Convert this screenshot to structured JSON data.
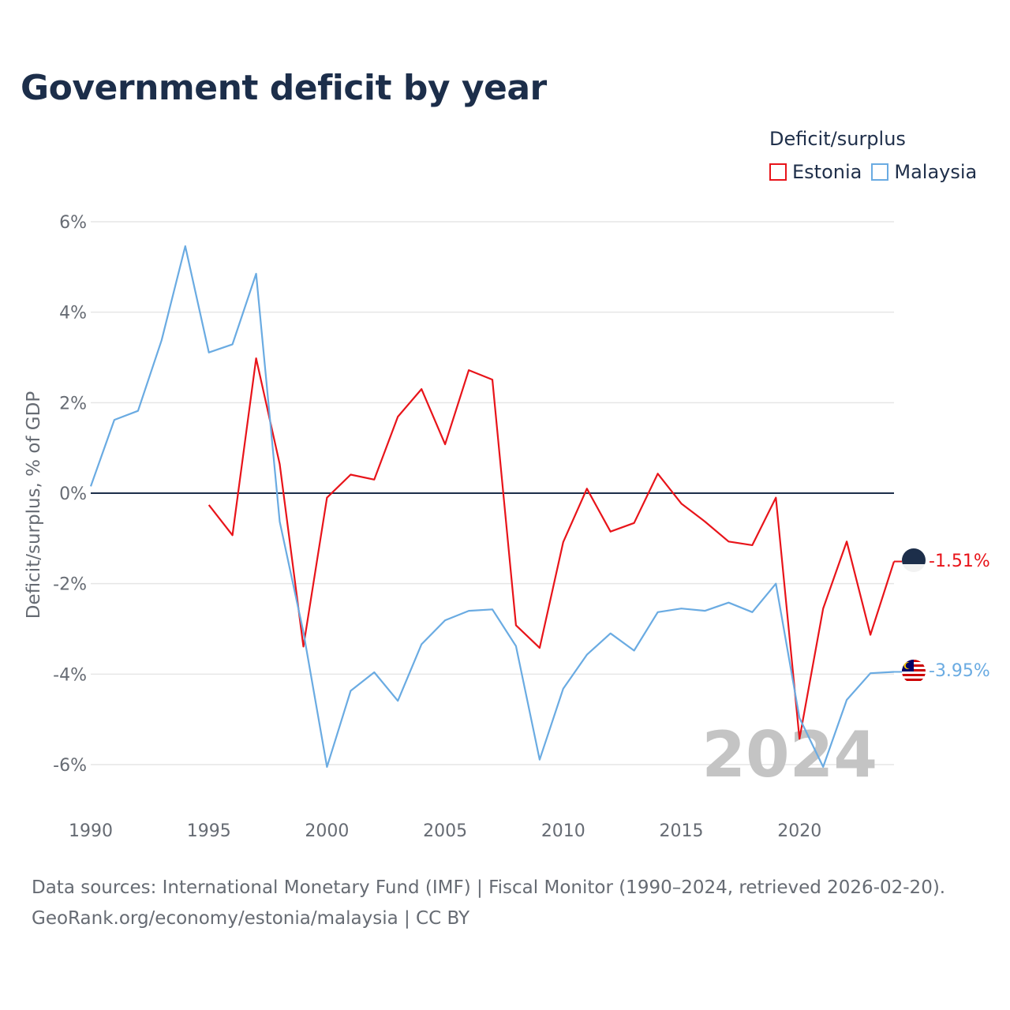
{
  "title": "Government deficit by year",
  "legend": {
    "title": "Deficit/surplus",
    "items": [
      {
        "name": "Estonia",
        "color": "#e8141a"
      },
      {
        "name": "Malaysia",
        "color": "#6aabe2"
      }
    ]
  },
  "footer": {
    "line1": "Data sources: International Monetary Fund (IMF) | Fiscal Monitor (1990–2024, retrieved 2026-02-20).",
    "line2": "GeoRank.org/economy/estonia/malaysia | CC BY"
  },
  "chart_data": {
    "type": "line",
    "title": "Government deficit by year",
    "xlabel": "",
    "ylabel": "Deficit/surplus, % of GDP",
    "xlim": [
      1990,
      2024
    ],
    "ylim": [
      -7,
      6
    ],
    "xticks": [
      1990,
      1995,
      2000,
      2005,
      2010,
      2015,
      2020
    ],
    "yticks": [
      {
        "value": 6,
        "label": "6%"
      },
      {
        "value": 4,
        "label": "4%"
      },
      {
        "value": 2,
        "label": "2%"
      },
      {
        "value": 0,
        "label": "0%"
      },
      {
        "value": -2,
        "label": "-2%"
      },
      {
        "value": -4,
        "label": "-4%"
      },
      {
        "value": -6,
        "label": "-6%"
      }
    ],
    "watermark_year": "2024",
    "series": [
      {
        "name": "Estonia",
        "color": "#e8141a",
        "end_label": "-1.51%",
        "x": [
          1995,
          1996,
          1997,
          1998,
          1999,
          2000,
          2001,
          2002,
          2003,
          2004,
          2005,
          2006,
          2007,
          2008,
          2009,
          2010,
          2011,
          2012,
          2013,
          2014,
          2015,
          2016,
          2017,
          2018,
          2019,
          2020,
          2021,
          2022,
          2023,
          2024
        ],
        "values": [
          -0.26,
          -0.93,
          2.98,
          0.64,
          -3.39,
          -0.1,
          0.41,
          0.3,
          1.69,
          2.3,
          1.08,
          2.72,
          2.51,
          -2.92,
          -3.42,
          -1.08,
          0.1,
          -0.85,
          -0.66,
          0.43,
          -0.23,
          -0.63,
          -1.07,
          -1.15,
          -0.1,
          -5.43,
          -2.55,
          -1.07,
          -3.13,
          -1.51
        ]
      },
      {
        "name": "Malaysia",
        "color": "#6aabe2",
        "end_label": "-3.95%",
        "x": [
          1990,
          1991,
          1992,
          1993,
          1994,
          1995,
          1996,
          1997,
          1998,
          1999,
          2000,
          2001,
          2002,
          2003,
          2004,
          2005,
          2006,
          2007,
          2008,
          2009,
          2010,
          2011,
          2012,
          2013,
          2014,
          2015,
          2016,
          2017,
          2018,
          2019,
          2020,
          2021,
          2022,
          2023,
          2024
        ],
        "values": [
          0.15,
          1.62,
          1.82,
          3.38,
          5.46,
          3.11,
          3.29,
          4.85,
          -0.63,
          -3.07,
          -6.05,
          -4.37,
          -3.96,
          -4.59,
          -3.34,
          -2.81,
          -2.6,
          -2.57,
          -3.38,
          -5.89,
          -4.32,
          -3.57,
          -3.1,
          -3.48,
          -2.63,
          -2.55,
          -2.6,
          -2.42,
          -2.63,
          -2.0,
          -4.97,
          -6.05,
          -4.57,
          -3.98,
          -3.95
        ]
      }
    ]
  }
}
